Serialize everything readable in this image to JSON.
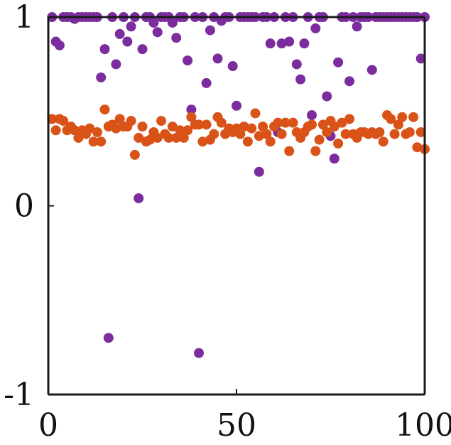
{
  "chart_data": {
    "type": "scatter",
    "title": "",
    "xlabel": "",
    "ylabel": "",
    "xlim": [
      0,
      100
    ],
    "ylim": [
      -1,
      1
    ],
    "xticks": [
      0,
      50,
      100
    ],
    "xtick_labels": [
      "0",
      "50",
      "100"
    ],
    "yticks": [
      -1,
      0,
      1
    ],
    "ytick_labels": [
      "-1",
      "0",
      "1"
    ],
    "grid": false,
    "legend": "none",
    "series": [
      {
        "color": "#7b2d9e",
        "x": [
          1,
          2,
          3,
          4,
          5,
          6,
          7,
          8,
          9,
          10,
          11,
          12,
          13,
          14,
          15,
          16,
          17,
          18,
          19,
          20,
          21,
          22,
          23,
          24,
          25,
          26,
          27,
          28,
          29,
          30,
          31,
          32,
          33,
          34,
          35,
          36,
          37,
          38,
          39,
          40,
          41,
          42,
          43,
          44,
          45,
          46,
          47,
          48,
          49,
          50,
          51,
          52,
          53,
          54,
          55,
          56,
          57,
          58,
          59,
          60,
          61,
          62,
          63,
          64,
          65,
          66,
          67,
          68,
          69,
          70,
          71,
          72,
          73,
          74,
          75,
          76,
          77,
          78,
          79,
          80,
          81,
          82,
          83,
          84,
          85,
          86,
          87,
          88,
          89,
          90,
          91,
          92,
          93,
          94,
          95,
          96,
          97,
          98,
          99,
          100
        ],
        "y": [
          1,
          0.87,
          0.85,
          1,
          1,
          1,
          0.99,
          1,
          1,
          1,
          1,
          1,
          1,
          0.68,
          0.83,
          -0.7,
          1,
          0.75,
          0.91,
          1,
          0.87,
          0.95,
          1,
          0.04,
          0.83,
          1,
          1,
          0.97,
          0.92,
          1,
          1,
          1,
          0.97,
          0.89,
          1,
          1,
          0.77,
          0.51,
          1,
          -0.78,
          1,
          0.65,
          0.93,
          1,
          0.78,
          0.98,
          1,
          1,
          0.74,
          0.53,
          1,
          1,
          1,
          1,
          1,
          0.18,
          1,
          1,
          0.86,
          1,
          0.39,
          0.86,
          1,
          0.87,
          1,
          0.75,
          0.67,
          0.86,
          1,
          0.48,
          0.94,
          1,
          1,
          0.58,
          0.37,
          0.25,
          0.76,
          1,
          1,
          0.66,
          1,
          0.95,
          1,
          1,
          1,
          0.72,
          1,
          1,
          1,
          1,
          1,
          1,
          1,
          1,
          1,
          1,
          1,
          1,
          0.78,
          1
        ]
      },
      {
        "color": "#d95319",
        "x": [
          1,
          2,
          3,
          4,
          5,
          6,
          7,
          8,
          9,
          10,
          11,
          12,
          13,
          14,
          15,
          16,
          17,
          18,
          19,
          20,
          21,
          22,
          23,
          24,
          25,
          26,
          27,
          28,
          29,
          30,
          31,
          32,
          33,
          34,
          35,
          36,
          37,
          38,
          39,
          40,
          41,
          42,
          43,
          44,
          45,
          46,
          47,
          48,
          49,
          50,
          51,
          52,
          53,
          54,
          55,
          56,
          57,
          58,
          59,
          60,
          61,
          62,
          63,
          64,
          65,
          66,
          67,
          68,
          69,
          70,
          71,
          72,
          73,
          74,
          75,
          76,
          77,
          78,
          79,
          80,
          81,
          82,
          83,
          84,
          85,
          86,
          87,
          88,
          89,
          90,
          91,
          92,
          93,
          94,
          95,
          96,
          97,
          98,
          99,
          100
        ],
        "y": [
          0.46,
          0.4,
          0.46,
          0.45,
          0.4,
          0.42,
          0.4,
          0.36,
          0.4,
          0.38,
          0.41,
          0.34,
          0.39,
          0.34,
          0.51,
          0.42,
          0.43,
          0.41,
          0.46,
          0.42,
          0.42,
          0.45,
          0.27,
          0.36,
          0.42,
          0.34,
          0.35,
          0.39,
          0.36,
          0.45,
          0.38,
          0.36,
          0.42,
          0.36,
          0.4,
          0.36,
          0.4,
          0.47,
          0.43,
          0.43,
          0.34,
          0.43,
          0.35,
          0.38,
          0.47,
          0.44,
          0.38,
          0.41,
          0.39,
          0.41,
          0.38,
          0.42,
          0.34,
          0.41,
          0.49,
          0.37,
          0.42,
          0.38,
          0.34,
          0.42,
          0.44,
          0.38,
          0.44,
          0.29,
          0.44,
          0.39,
          0.36,
          0.39,
          0.42,
          0.43,
          0.29,
          0.35,
          0.43,
          0.39,
          0.45,
          0.42,
          0.33,
          0.44,
          0.38,
          0.46,
          0.38,
          0.36,
          0.39,
          0.39,
          0.38,
          0.39,
          0.38,
          0.39,
          0.34,
          0.48,
          0.46,
          0.38,
          0.43,
          0.47,
          0.38,
          0.39,
          0.47,
          0.31,
          0.39,
          0.3
        ]
      }
    ]
  }
}
